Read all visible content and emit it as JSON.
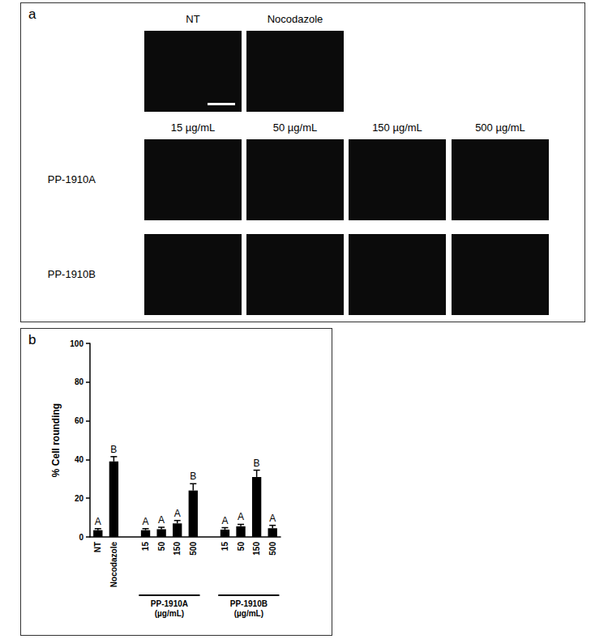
{
  "panel_a": {
    "letter": "a",
    "top_row": [
      "NT",
      "Nocodazole"
    ],
    "columns": [
      "15 µg/mL",
      "50 µg/mL",
      "150 µg/mL",
      "500 µg/mL"
    ],
    "rows": [
      "PP-1910A",
      "PP-1910B"
    ]
  },
  "chart_data": {
    "type": "bar",
    "panel_letter": "b",
    "ylabel": "% Cell rounding",
    "categories": [
      "NT",
      "Nocodazole",
      null,
      "15",
      "50",
      "150",
      "500",
      null,
      "15",
      "50",
      "150",
      "500"
    ],
    "values": [
      3.5,
      39,
      null,
      3.5,
      4,
      7,
      24,
      null,
      3.8,
      5.5,
      31,
      4.5
    ],
    "errors": [
      0.8,
      2.5,
      null,
      0.8,
      1,
      1.5,
      3.5,
      null,
      1,
      1,
      3.5,
      1.5
    ],
    "significance": [
      "A",
      "B",
      null,
      "A",
      "A",
      "A",
      "B",
      null,
      "A",
      "A",
      "B",
      "A"
    ],
    "group_labels": [
      null,
      "PP-1910A (µg/mL)",
      "PP-1910B (µg/mL)"
    ],
    "color": "#000000",
    "ylim": [
      0,
      100
    ],
    "yticks": [
      0,
      20,
      40,
      60,
      80,
      100
    ],
    "grid": false
  }
}
